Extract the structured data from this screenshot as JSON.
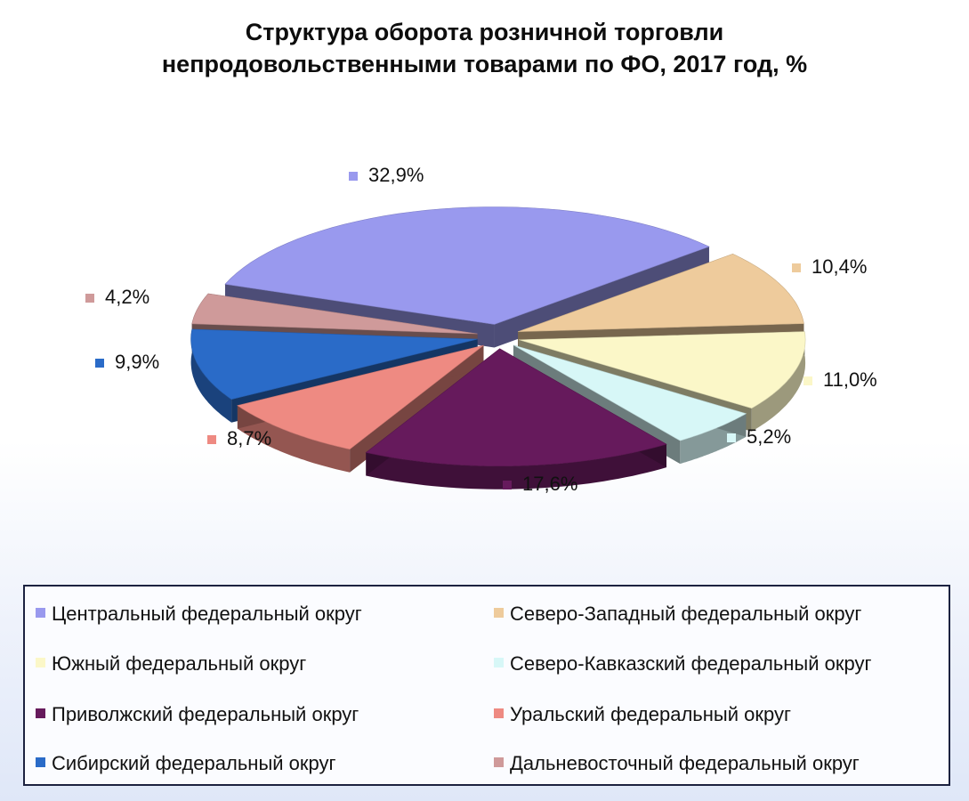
{
  "title": {
    "line1": "Структура оборота розничной торговли",
    "line2": "непродовольственными товарами по ФО, 2017 год, %"
  },
  "chart_data": {
    "type": "pie",
    "style": "3d-exploded",
    "title": "Структура оборота розничной торговли непродовольственными товарами по ФО, 2017 год, %",
    "unit": "%",
    "slices": [
      {
        "name": "Центральный федеральный округ",
        "value": 32.9,
        "label": "32,9%",
        "color": "#9999ee"
      },
      {
        "name": "Северо-Западный федеральный округ",
        "value": 10.4,
        "label": "10,4%",
        "color": "#eecb9c"
      },
      {
        "name": "Южный федеральный округ",
        "value": 11.0,
        "label": "11,0%",
        "color": "#fbf7c8"
      },
      {
        "name": "Северо-Кавказский федеральный округ",
        "value": 5.2,
        "label": "5,2%",
        "color": "#d7f7f7"
      },
      {
        "name": "Приволжский федеральный округ",
        "value": 17.6,
        "label": "17,6%",
        "color": "#661a5c"
      },
      {
        "name": "Уральский федеральный округ",
        "value": 8.7,
        "label": "8,7%",
        "color": "#ee8a82"
      },
      {
        "name": "Сибирский федеральный округ",
        "value": 9.9,
        "label": "9,9%",
        "color": "#2a6bc8"
      },
      {
        "name": "Дальневосточный федеральный округ",
        "value": 4.2,
        "label": "4,2%",
        "color": "#cf9a9a"
      }
    ],
    "legend_position": "bottom"
  },
  "legend": {
    "items": [
      {
        "label": "Центральный федеральный округ",
        "color": "#9999ee"
      },
      {
        "label": "Северо-Западный  федеральный округ",
        "color": "#eecb9c"
      },
      {
        "label": "Южный федеральный округ",
        "color": "#fbf7c8"
      },
      {
        "label": "Северо-Кавказский федеральный округ",
        "color": "#d7f7f7"
      },
      {
        "label": "Приволжский федеральный округ",
        "color": "#661a5c"
      },
      {
        "label": "Уральский федеральный округ",
        "color": "#ee8a82"
      },
      {
        "label": "Сибирский  федеральный округ",
        "color": "#2a6bc8"
      },
      {
        "label": "Дальневосточный федеральный округ",
        "color": "#cf9a9a"
      }
    ]
  }
}
